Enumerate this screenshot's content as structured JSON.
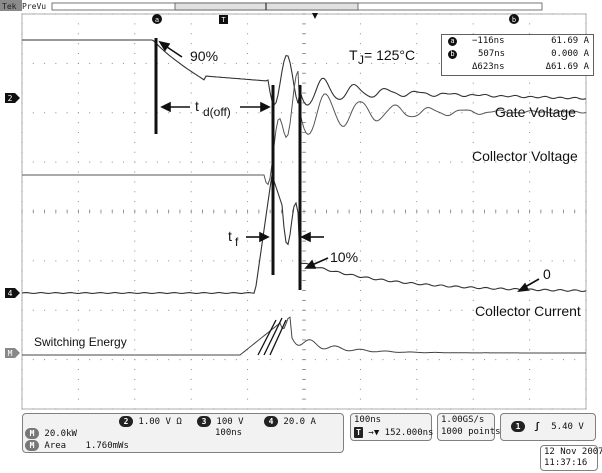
{
  "header": {
    "brand": "Tek",
    "mode": "PreVu",
    "trigger_marker_label": "T",
    "cursor_a_label": "a",
    "cursor_b_label": "b"
  },
  "annotations": {
    "junction_temp": "T",
    "junction_temp_sub": "J",
    "junction_temp_value": " = 125°C",
    "pct_90": "90%",
    "td_off": "t",
    "td_off_sub": "d(off)",
    "tf": "t",
    "tf_sub": "f",
    "pct_10": "10%",
    "zero": "0",
    "gate_voltage": "Gate Voltage",
    "collector_voltage": "Collector Voltage",
    "collector_current": "Collector Current",
    "switching_energy": "Switching Energy"
  },
  "channel_markers": {
    "ch2": "2",
    "ch4": "4",
    "math": "M"
  },
  "cursor_readout": {
    "row_a": {
      "marker": "a",
      "time": "−116ns",
      "value": "61.69 A"
    },
    "row_b": {
      "marker": "b",
      "time": "507ns",
      "value": "0.000 A"
    },
    "row_delta": {
      "time": "Δ623ns",
      "value": "Δ61.69 A"
    }
  },
  "status": {
    "ch2_badge": "2",
    "ch2_scale": "1.00 V",
    "ch2_unit_symbol": "Ω",
    "ch3_badge": "3",
    "ch3_scale": "100 V",
    "ch4_badge": "4",
    "ch4_scale": "20.0 A",
    "math_badge": "M",
    "math_scale": "20.0kW",
    "math_time": "100ns",
    "meas_badge": "M",
    "meas_name": "Area",
    "meas_value": "1.760mWs",
    "horiz_scale": "100ns",
    "trig_pos": "→▼ 152.000ns",
    "trig_icon": "T",
    "sample_rate": "1.00GS/s",
    "record_length": "1000 points",
    "trig_channel_badge": "1",
    "trig_slope": "ʃ",
    "trig_level": "5.40 V",
    "date": "12 Nov 2007",
    "time": "11:37:16"
  },
  "colors": {
    "trace": "#333333",
    "grid_dot": "#8a8a8a",
    "panel_bg": "#f2f2f2",
    "marker_black": "#111111"
  }
}
